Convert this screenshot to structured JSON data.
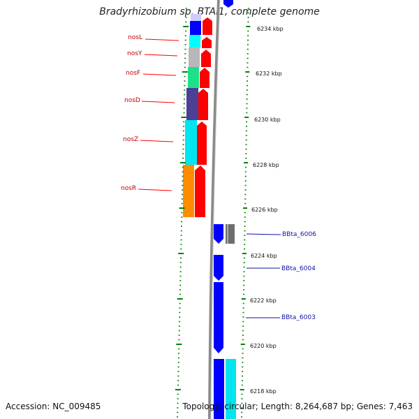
{
  "title": "Bradyrhizobium sp. BTAi1, complete genome",
  "accession_text": "Accession: NC_009485",
  "summary_text": "Topology: circular; Length: 8,264,687 bp; Genes: 7,463",
  "kbp_labels": [
    "6234 kbp",
    "6232 kbp",
    "6230 kbp",
    "6228 kbp",
    "6226 kbp",
    "6224 kbp",
    "6222 kbp",
    "6220 kbp",
    "6218 kbp"
  ],
  "left_genes": [
    {
      "name": "nosL",
      "color": "#ff0000",
      "fill_color": "#0000ff"
    },
    {
      "name": "nosY",
      "color": "#ff0000",
      "fill_color": "#b8b8b8"
    },
    {
      "name": "nosF",
      "color": "#ff0000",
      "fill_color": "#1ee08a"
    },
    {
      "name": "nosD",
      "color": "#ff0000",
      "fill_color": "#4b3f96"
    },
    {
      "name": "nosZ",
      "color": "#ff0000",
      "fill_color": "#00e5ef"
    },
    {
      "name": "nosR",
      "color": "#ff0000",
      "fill_color": "#ff8c00"
    }
  ],
  "right_genes": [
    {
      "name": "BBta_6006",
      "color": "#0000ff"
    },
    {
      "name": "BBta_6004",
      "color": "#0000ff"
    },
    {
      "name": "BBta_6003",
      "color": "#0000ff"
    }
  ],
  "colors": {
    "backbone": "#8a8a8a",
    "tick": "#008000",
    "label_left": "#c00000",
    "label_right": "#1010aa",
    "gray_gene": "#6e6e6e",
    "cyan_gene": "#00e5ef"
  }
}
